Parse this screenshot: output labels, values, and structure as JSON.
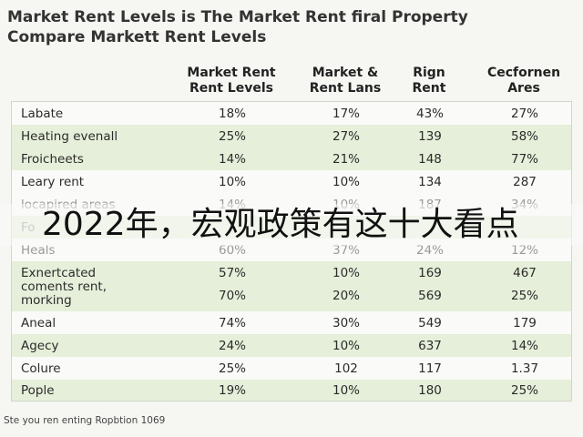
{
  "title": {
    "line1": "Market Rent Levels is The Market Rent firal Property",
    "line2": "Compare Markett Rent Levels"
  },
  "table": {
    "headers": [
      {
        "line1": "Market Rent",
        "line2": "Rent Levels"
      },
      {
        "line1": "Market &",
        "line2": "Rent Lans"
      },
      {
        "line1": "Rign",
        "line2": "Rent"
      },
      {
        "line1": "Cecfornen",
        "line2": "Ares"
      }
    ],
    "rows": [
      {
        "label": "Labate",
        "values": [
          "18%",
          "17%",
          "43%",
          "27%"
        ]
      },
      {
        "label": "Heating evenall",
        "values": [
          "25%",
          "27%",
          "139",
          "58%"
        ]
      },
      {
        "label": "Froicheets",
        "values": [
          "14%",
          "21%",
          "148",
          "77%"
        ]
      },
      {
        "label": "Leary rent",
        "values": [
          "10%",
          "10%",
          "134",
          "287"
        ]
      },
      {
        "label": "locapired areas",
        "values": [
          "14%",
          "10%",
          "187",
          "34%"
        ]
      },
      {
        "label": "Fo",
        "values": [
          "",
          "",
          "",
          ""
        ]
      },
      {
        "label": "Heals",
        "values": [
          "60%",
          "37%",
          "24%",
          "12%"
        ]
      },
      {
        "label": "Exnertcated",
        "values": [
          "57%",
          "10%",
          "169",
          "467"
        ]
      },
      {
        "label_line1": "coments rent,",
        "label_line2": "morking",
        "values": [
          "70%",
          "20%",
          "569",
          "25%"
        ]
      },
      {
        "label": "Aneal",
        "values": [
          "74%",
          "30%",
          "549",
          "179"
        ]
      },
      {
        "label": "Agecy",
        "values": [
          "24%",
          "10%",
          "637",
          "14%"
        ]
      },
      {
        "label": "Colure",
        "values": [
          "25%",
          "102",
          "117",
          "1.37"
        ]
      },
      {
        "label": "Pople",
        "values": [
          "19%",
          "10%",
          "180",
          "25%"
        ]
      }
    ]
  },
  "footer": "Ste you ren enting Ropbtion 1069",
  "overlay_caption": "2022年，宏观政策有这十大看点",
  "colors": {
    "row_green": "#e6efd9",
    "row_white": "#fafaf8",
    "border": "#cfd8c8"
  }
}
